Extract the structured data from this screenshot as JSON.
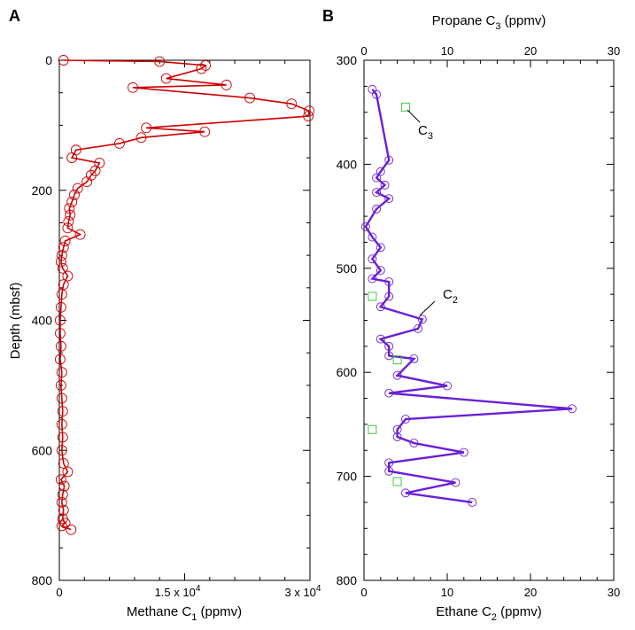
{
  "chart_data": [
    {
      "panel_label": "A",
      "type": "line",
      "xlabel": "Methane C",
      "xlabel_sub": "1",
      "xlabel_unit": " (ppmv)",
      "ylabel": "Depth (mbsf)",
      "xlim": [
        0,
        30000
      ],
      "ylim": [
        0,
        800
      ],
      "y_inverted": true,
      "x_ticks": [
        {
          "value": 0,
          "label": "0"
        },
        {
          "value": 15000,
          "label": "1.5 x 10",
          "exp": "4"
        },
        {
          "value": 30000,
          "label": "3 x 10",
          "exp": "4"
        }
      ],
      "y_ticks": [
        0,
        200,
        400,
        600,
        800
      ],
      "grid": false,
      "series": [
        {
          "color": "#cc0000",
          "marker": "circle",
          "points": [
            [
              500,
              0
            ],
            [
              12000,
              2
            ],
            [
              17500,
              8
            ],
            [
              17000,
              13
            ],
            [
              12800,
              28
            ],
            [
              20000,
              38
            ],
            [
              8800,
              42
            ],
            [
              22800,
              58
            ],
            [
              27800,
              67
            ],
            [
              29900,
              78
            ],
            [
              29800,
              86
            ],
            [
              10400,
              104
            ],
            [
              17400,
              110
            ],
            [
              9800,
              119
            ],
            [
              7200,
              128
            ],
            [
              2000,
              138
            ],
            [
              1500,
              150
            ],
            [
              4800,
              158
            ],
            [
              4300,
              170
            ],
            [
              3800,
              177
            ],
            [
              3300,
              187
            ],
            [
              2200,
              197
            ],
            [
              1800,
              207
            ],
            [
              1500,
              218
            ],
            [
              1200,
              228
            ],
            [
              1300,
              238
            ],
            [
              1100,
              248
            ],
            [
              1000,
              258
            ],
            [
              2500,
              268
            ],
            [
              700,
              278
            ],
            [
              500,
              288
            ],
            [
              300,
              300
            ],
            [
              200,
              310
            ],
            [
              400,
              320
            ],
            [
              1000,
              332
            ],
            [
              500,
              345
            ],
            [
              300,
              360
            ],
            [
              200,
              380
            ],
            [
              100,
              400
            ],
            [
              100,
              420
            ],
            [
              200,
              440
            ],
            [
              100,
              460
            ],
            [
              300,
              480
            ],
            [
              200,
              500
            ],
            [
              300,
              520
            ],
            [
              400,
              540
            ],
            [
              300,
              560
            ],
            [
              400,
              580
            ],
            [
              300,
              600
            ],
            [
              500,
              620
            ],
            [
              1000,
              633
            ],
            [
              200,
              645
            ],
            [
              600,
              655
            ],
            [
              400,
              668
            ],
            [
              300,
              680
            ],
            [
              500,
              692
            ],
            [
              400,
              705
            ],
            [
              700,
              712
            ],
            [
              300,
              716
            ],
            [
              1400,
              722
            ]
          ]
        }
      ]
    },
    {
      "panel_label": "B",
      "type": "line",
      "xlabel": "Ethane C",
      "xlabel_sub": "2",
      "xlabel_unit": " (ppmv)",
      "x2label": "Propane C",
      "x2label_sub": "3",
      "x2label_unit": " (ppmv)",
      "xlim": [
        0,
        30
      ],
      "x2lim": [
        0,
        30
      ],
      "ylim": [
        300,
        800
      ],
      "y_inverted": true,
      "x_ticks": [
        0,
        10,
        20,
        30
      ],
      "x2_ticks": [
        0,
        10,
        20,
        30
      ],
      "y_ticks": [
        300,
        400,
        500,
        600,
        700,
        800
      ],
      "grid": false,
      "series": [
        {
          "name": "C2",
          "label": "C",
          "label_sub": "2",
          "color": "#6a1fd8",
          "marker": "circle",
          "points": [
            [
              1,
              328
            ],
            [
              1.5,
              333
            ],
            [
              3,
              396
            ],
            [
              2,
              407
            ],
            [
              1.5,
              413
            ],
            [
              2.5,
              420
            ],
            [
              1.5,
              427
            ],
            [
              3,
              433
            ],
            [
              1.5,
              443
            ],
            [
              0.2,
              460
            ],
            [
              1,
              470
            ],
            [
              2,
              480
            ],
            [
              1,
              491
            ],
            [
              2,
              502
            ],
            [
              1,
              510
            ],
            [
              3,
              513
            ],
            [
              3,
              527
            ],
            [
              2,
              537
            ],
            [
              7,
              549
            ],
            [
              6.5,
              558
            ],
            [
              2,
              568
            ],
            [
              3,
              575
            ],
            [
              3,
              584
            ],
            [
              6,
              587
            ],
            [
              4,
              603
            ],
            [
              10,
              613
            ],
            [
              3,
              620
            ],
            [
              25,
              635
            ],
            [
              5,
              645
            ],
            [
              4,
              655
            ],
            [
              4,
              662
            ],
            [
              6,
              668
            ],
            [
              12,
              677
            ],
            [
              3,
              687
            ],
            [
              3,
              695
            ],
            [
              11,
              706
            ],
            [
              5,
              716
            ],
            [
              13,
              725
            ]
          ]
        },
        {
          "name": "C3",
          "label": "C",
          "label_sub": "3",
          "color": "#44c944",
          "marker": "square",
          "points": [
            [
              5,
              345
            ],
            [
              1,
              527
            ],
            [
              4,
              588
            ],
            [
              1,
              655
            ],
            [
              4,
              705
            ]
          ]
        }
      ]
    }
  ]
}
